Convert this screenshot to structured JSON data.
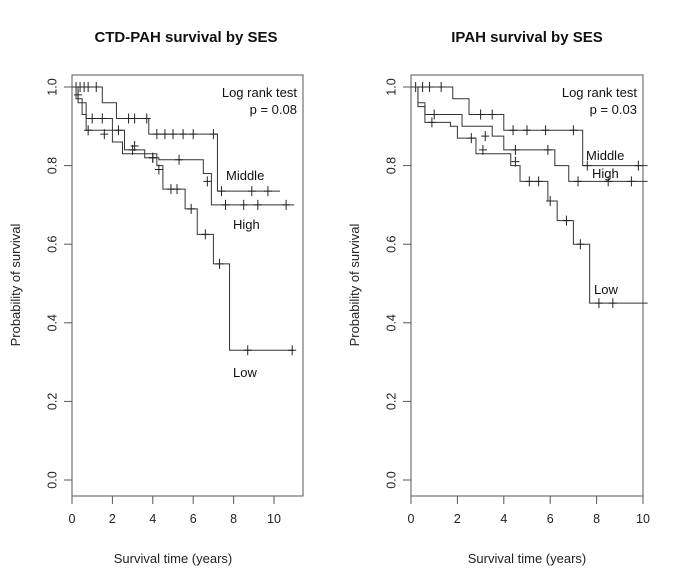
{
  "chart_data": [
    {
      "type": "line",
      "subtype": "kaplan-meier",
      "title": "CTD-PAH survival by SES",
      "xlabel": "Survival time (years)",
      "ylabel": "Probability of survival",
      "xlim": [
        0,
        11.5
      ],
      "ylim": [
        0,
        1.0
      ],
      "xticks": [
        "0",
        "2",
        "4",
        "6",
        "8",
        "10"
      ],
      "yticks": [
        "0.0",
        "0.2",
        "0.4",
        "0.6",
        "0.8",
        "1.0"
      ],
      "annotation": [
        "Log rank test",
        "p = 0.08"
      ],
      "series": [
        {
          "name": "Middle",
          "steps": [
            [
              0,
              1.0
            ],
            [
              1.5,
              0.96
            ],
            [
              2.2,
              0.92
            ],
            [
              3.8,
              0.88
            ],
            [
              7.2,
              0.735
            ],
            [
              10.3,
              0.735
            ]
          ],
          "censors": [
            [
              0.4,
              1.0
            ],
            [
              0.6,
              1.0
            ],
            [
              0.8,
              1.0
            ],
            [
              1.2,
              1.0
            ],
            [
              2.8,
              0.92
            ],
            [
              3.1,
              0.92
            ],
            [
              3.7,
              0.92
            ],
            [
              4.2,
              0.88
            ],
            [
              4.6,
              0.88
            ],
            [
              5.0,
              0.88
            ],
            [
              5.5,
              0.88
            ],
            [
              6.0,
              0.88
            ],
            [
              7.0,
              0.88
            ],
            [
              7.4,
              0.735
            ],
            [
              8.9,
              0.735
            ],
            [
              9.7,
              0.735
            ]
          ]
        },
        {
          "name": "High",
          "steps": [
            [
              0,
              1.0
            ],
            [
              0.3,
              0.96
            ],
            [
              0.7,
              0.92
            ],
            [
              2.0,
              0.89
            ],
            [
              2.6,
              0.84
            ],
            [
              3.6,
              0.82
            ],
            [
              4.3,
              0.815
            ],
            [
              6.5,
              0.78
            ],
            [
              6.9,
              0.7
            ],
            [
              11.0,
              0.7
            ]
          ],
          "censors": [
            [
              0.2,
              1.0
            ],
            [
              1.0,
              0.92
            ],
            [
              1.5,
              0.92
            ],
            [
              2.3,
              0.89
            ],
            [
              3.1,
              0.85
            ],
            [
              4.0,
              0.82
            ],
            [
              5.3,
              0.815
            ],
            [
              6.7,
              0.76
            ],
            [
              7.6,
              0.7
            ],
            [
              8.5,
              0.7
            ],
            [
              9.2,
              0.7
            ],
            [
              10.6,
              0.7
            ]
          ]
        },
        {
          "name": "Low",
          "steps": [
            [
              0,
              1.0
            ],
            [
              0.2,
              0.97
            ],
            [
              0.5,
              0.93
            ],
            [
              0.7,
              0.89
            ],
            [
              1.4,
              0.89
            ],
            [
              2.0,
              0.86
            ],
            [
              2.5,
              0.83
            ],
            [
              4.2,
              0.8
            ],
            [
              4.5,
              0.74
            ],
            [
              5.6,
              0.69
            ],
            [
              6.2,
              0.625
            ],
            [
              7.0,
              0.55
            ],
            [
              7.8,
              0.33
            ],
            [
              11.0,
              0.33
            ]
          ],
          "censors": [
            [
              0.3,
              0.98
            ],
            [
              0.8,
              0.89
            ],
            [
              1.6,
              0.88
            ],
            [
              3.0,
              0.84
            ],
            [
              4.0,
              0.82
            ],
            [
              4.3,
              0.79
            ],
            [
              4.9,
              0.74
            ],
            [
              5.2,
              0.74
            ],
            [
              5.9,
              0.69
            ],
            [
              6.6,
              0.625
            ],
            [
              7.3,
              0.55
            ],
            [
              8.7,
              0.33
            ],
            [
              10.9,
              0.33
            ]
          ]
        }
      ],
      "curve_labels": [
        "Middle",
        "High",
        "Low"
      ]
    },
    {
      "type": "line",
      "subtype": "kaplan-meier",
      "title": "IPAH survival by SES",
      "xlabel": "Survival time (years)",
      "ylabel": "Probability of survival",
      "xlim": [
        0,
        10.2
      ],
      "ylim": [
        0,
        1.0
      ],
      "xticks": [
        "0",
        "2",
        "4",
        "6",
        "8",
        "10"
      ],
      "yticks": [
        "0.0",
        "0.2",
        "0.4",
        "0.6",
        "0.8",
        "1.0"
      ],
      "annotation": [
        "Log rank test",
        "p = 0.03"
      ],
      "series": [
        {
          "name": "Middle",
          "steps": [
            [
              0,
              1.0
            ],
            [
              1.8,
              0.97
            ],
            [
              2.5,
              0.93
            ],
            [
              4.0,
              0.89
            ],
            [
              7.4,
              0.8
            ],
            [
              10.2,
              0.8
            ]
          ],
          "censors": [
            [
              0.5,
              1.0
            ],
            [
              0.8,
              1.0
            ],
            [
              1.3,
              1.0
            ],
            [
              3.0,
              0.93
            ],
            [
              3.5,
              0.93
            ],
            [
              4.4,
              0.89
            ],
            [
              5.0,
              0.89
            ],
            [
              5.8,
              0.89
            ],
            [
              7.0,
              0.89
            ],
            [
              7.6,
              0.8
            ],
            [
              9.8,
              0.8
            ]
          ]
        },
        {
          "name": "High",
          "steps": [
            [
              0,
              1.0
            ],
            [
              0.3,
              0.96
            ],
            [
              0.6,
              0.93
            ],
            [
              2.2,
              0.9
            ],
            [
              3.5,
              0.875
            ],
            [
              4.0,
              0.84
            ],
            [
              6.2,
              0.8
            ],
            [
              6.8,
              0.76
            ],
            [
              10.2,
              0.76
            ]
          ],
          "censors": [
            [
              0.2,
              1.0
            ],
            [
              1.0,
              0.93
            ],
            [
              3.2,
              0.875
            ],
            [
              4.5,
              0.84
            ],
            [
              5.9,
              0.84
            ],
            [
              7.2,
              0.76
            ],
            [
              8.5,
              0.76
            ],
            [
              9.5,
              0.76
            ]
          ]
        },
        {
          "name": "Low",
          "steps": [
            [
              0,
              1.0
            ],
            [
              0.3,
              0.95
            ],
            [
              0.6,
              0.91
            ],
            [
              1.7,
              0.9
            ],
            [
              2.0,
              0.87
            ],
            [
              2.8,
              0.83
            ],
            [
              4.3,
              0.8
            ],
            [
              4.7,
              0.76
            ],
            [
              5.9,
              0.71
            ],
            [
              6.3,
              0.66
            ],
            [
              7.0,
              0.6
            ],
            [
              7.7,
              0.45
            ],
            [
              10.2,
              0.45
            ]
          ],
          "censors": [
            [
              0.9,
              0.91
            ],
            [
              2.6,
              0.87
            ],
            [
              3.1,
              0.84
            ],
            [
              4.5,
              0.81
            ],
            [
              5.1,
              0.76
            ],
            [
              5.5,
              0.76
            ],
            [
              6.0,
              0.71
            ],
            [
              6.7,
              0.66
            ],
            [
              7.3,
              0.6
            ],
            [
              8.1,
              0.45
            ],
            [
              8.7,
              0.45
            ]
          ]
        }
      ],
      "curve_labels": [
        "Middle",
        "High",
        "Low"
      ]
    }
  ]
}
